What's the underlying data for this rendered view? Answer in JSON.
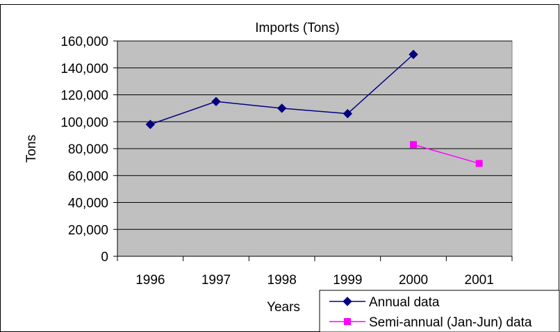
{
  "chart_data": {
    "type": "line",
    "title": "Imports (Tons)",
    "xlabel": "Years",
    "ylabel": "Tons",
    "categories": [
      "1996",
      "1997",
      "1998",
      "1999",
      "2000",
      "2001"
    ],
    "ylim": [
      0,
      160000
    ],
    "yticks": [
      0,
      20000,
      40000,
      60000,
      80000,
      100000,
      120000,
      140000,
      160000
    ],
    "ytick_labels": [
      "0",
      "20,000",
      "40,000",
      "60,000",
      "80,000",
      "100,000",
      "120,000",
      "140,000",
      "160,000"
    ],
    "grid": true,
    "plot_background": "#c0c0c0",
    "legend_position": "bottom-right",
    "series": [
      {
        "name": "Annual data",
        "color": "#000080",
        "marker": "diamond",
        "values": [
          98000,
          115000,
          110000,
          106000,
          150000,
          null
        ]
      },
      {
        "name": "Semi-annual (Jan-Jun) data",
        "color": "#ff00ff",
        "marker": "square",
        "values": [
          null,
          null,
          null,
          null,
          83000,
          69000
        ]
      }
    ]
  }
}
